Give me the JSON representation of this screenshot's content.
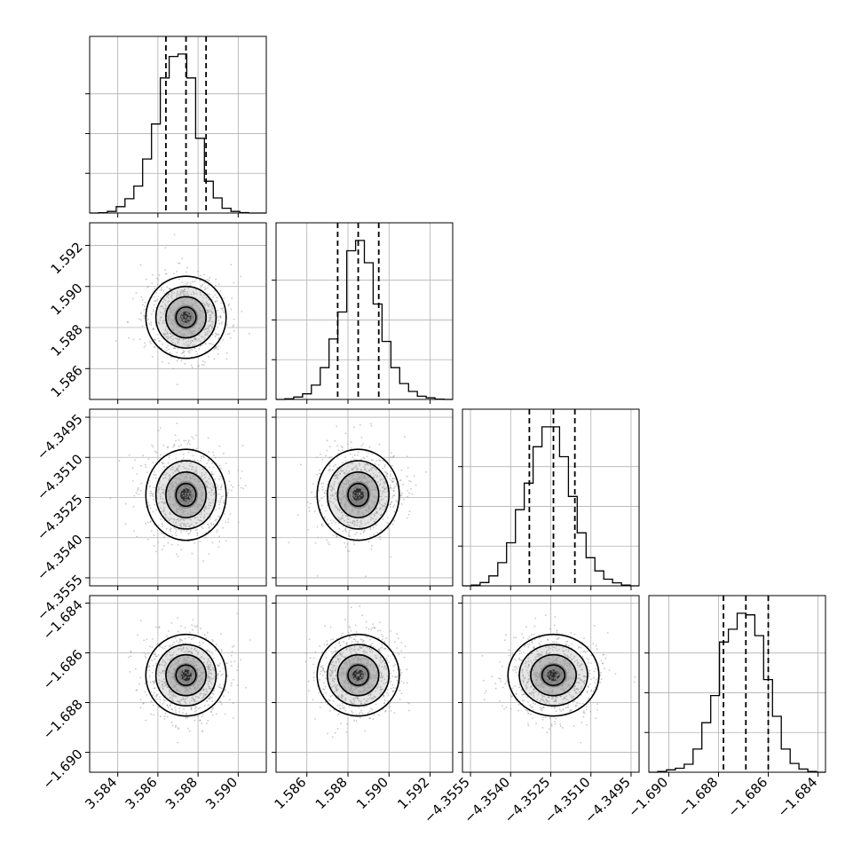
{
  "chart_data": {
    "type": "corner",
    "title": "",
    "parameters": [
      {
        "label": "",
        "range": [
          3.5826,
          3.5914
        ],
        "ticks": [
          3.584,
          3.586,
          3.588,
          3.59
        ],
        "tick_labels": [
          "3.584",
          "3.586",
          "3.588",
          "3.590"
        ],
        "quantiles": [
          3.5864,
          3.5874,
          3.5884
        ],
        "histogram": {
          "edges_start": 3.5826,
          "bin_width": 0.00044,
          "counts": [
            0,
            2,
            10,
            40,
            90,
            170,
            340,
            560,
            850,
            985,
            1000,
            850,
            470,
            200,
            95,
            30,
            10,
            3,
            0,
            0
          ]
        }
      },
      {
        "label": "",
        "range": [
          1.5845,
          1.5931
        ],
        "ticks": [
          1.586,
          1.588,
          1.59,
          1.592
        ],
        "tick_labels": [
          "1.586",
          "1.588",
          "1.590",
          "1.592"
        ],
        "quantiles": [
          1.5875,
          1.5885,
          1.5895
        ],
        "histogram": {
          "edges_start": 1.5845,
          "bin_width": 0.00043,
          "counts": [
            0,
            4,
            15,
            35,
            90,
            200,
            380,
            550,
            935,
            1000,
            860,
            600,
            365,
            200,
            100,
            50,
            20,
            10,
            2,
            0
          ]
        }
      },
      {
        "label": "",
        "range": [
          -4.3558,
          -4.3492
        ],
        "ticks": [
          -4.3555,
          -4.354,
          -4.3525,
          -4.351,
          -4.3495
        ],
        "tick_labels": [
          "−4.3555",
          "−4.3540",
          "−4.3525",
          "−4.3510",
          "−4.3495"
        ],
        "quantiles": [
          -4.3533,
          -4.3524,
          -4.3516
        ],
        "histogram": {
          "edges_start": -4.3558,
          "bin_width": 0.00033,
          "counts": [
            0,
            5,
            20,
            60,
            140,
            260,
            460,
            620,
            840,
            960,
            960,
            780,
            540,
            320,
            170,
            90,
            40,
            18,
            5,
            0
          ]
        }
      },
      {
        "label": "",
        "range": [
          -1.6908,
          -1.6837
        ],
        "ticks": [
          -1.69,
          -1.688,
          -1.686,
          -1.684
        ],
        "tick_labels": [
          "−1.690",
          "−1.688",
          "−1.686",
          "−1.684"
        ],
        "quantiles": [
          -1.6878,
          -1.6869,
          -1.686
        ],
        "histogram": {
          "edges_start": -1.6908,
          "bin_width": 0.000355,
          "counts": [
            0,
            5,
            15,
            25,
            50,
            145,
            310,
            480,
            815,
            895,
            995,
            985,
            855,
            580,
            350,
            145,
            55,
            20,
            5,
            0
          ]
        }
      }
    ],
    "marginals": [
      {
        "mean": 3.5874,
        "sd": 0.001
      },
      {
        "mean": 1.5885,
        "sd": 0.001
      },
      {
        "mean": -4.3524,
        "sd": 0.00085
      },
      {
        "mean": -1.6869,
        "sd": 0.00082
      }
    ],
    "contour_levels": [
      "1-sigma",
      "1.5-sigma",
      "2-sigma"
    ],
    "grid": true,
    "scatter_color": "#9a9a9a",
    "line_color": "#000000"
  }
}
